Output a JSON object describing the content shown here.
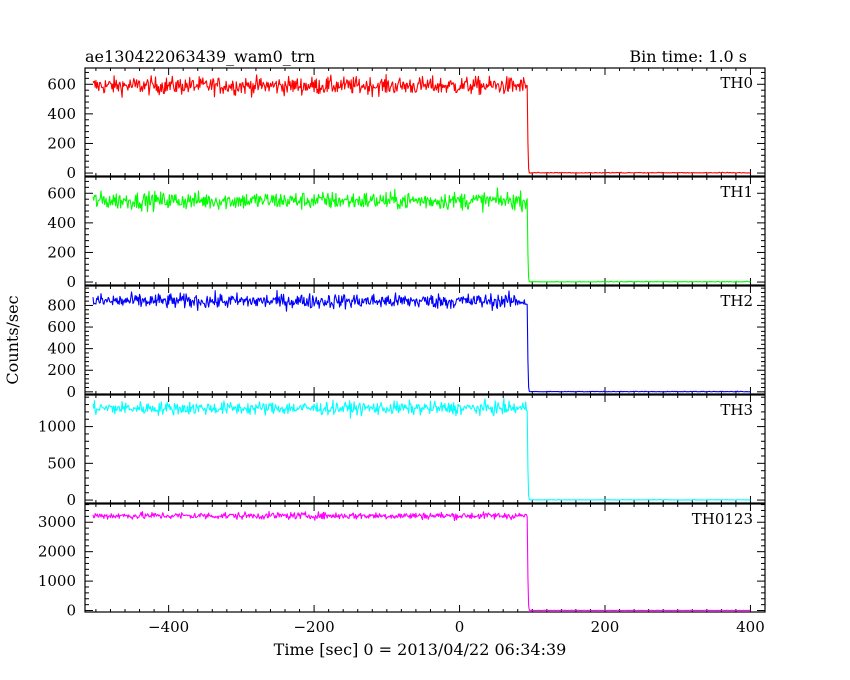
{
  "chart_data": {
    "type": "line",
    "title": "ae130422063439_wam0_trn",
    "subtitle": "Bin time: 1.0 s",
    "xlabel": "Time [sec] 0 = 2013/04/22 06:34:39",
    "ylabel": "Counts/sec",
    "xlim": [
      -515,
      420
    ],
    "x_ticks": [
      -400,
      -200,
      0,
      200,
      400
    ],
    "x_tick_labels": [
      "−400",
      "−200",
      "0",
      "200",
      "400"
    ],
    "x_start": -504,
    "x_drop": 93,
    "x_end": 400,
    "series": [
      {
        "name": "TH0",
        "color": "#ff0000",
        "level": 590,
        "noise": 30,
        "ylim": [
          -20,
          710
        ],
        "y_ticks": [
          0,
          200,
          400,
          600
        ],
        "y_tick_labels": [
          "0",
          "200",
          "400",
          "600"
        ]
      },
      {
        "name": "TH1",
        "color": "#00ff00",
        "level": 550,
        "noise": 30,
        "ylim": [
          -20,
          710
        ],
        "y_ticks": [
          0,
          200,
          400,
          600
        ],
        "y_tick_labels": [
          "0",
          "200",
          "400",
          "600"
        ]
      },
      {
        "name": "TH2",
        "color": "#0000ff",
        "level": 840,
        "noise": 35,
        "ylim": [
          -20,
          980
        ],
        "y_ticks": [
          0,
          200,
          400,
          600,
          800
        ],
        "y_tick_labels": [
          "0",
          "200",
          "400",
          "600",
          "800"
        ]
      },
      {
        "name": "TH3",
        "color": "#00ffff",
        "level": 1250,
        "noise": 45,
        "ylim": [
          -40,
          1430
        ],
        "y_ticks": [
          0,
          500,
          1000
        ],
        "y_tick_labels": [
          "0",
          "500",
          "1000"
        ]
      },
      {
        "name": "TH0123",
        "color": "#ff00ff",
        "level": 3220,
        "noise": 60,
        "ylim": [
          -50,
          3620
        ],
        "y_ticks": [
          0,
          1000,
          2000,
          3000
        ],
        "y_tick_labels": [
          "0",
          "1000",
          "2000",
          "3000"
        ]
      }
    ]
  }
}
